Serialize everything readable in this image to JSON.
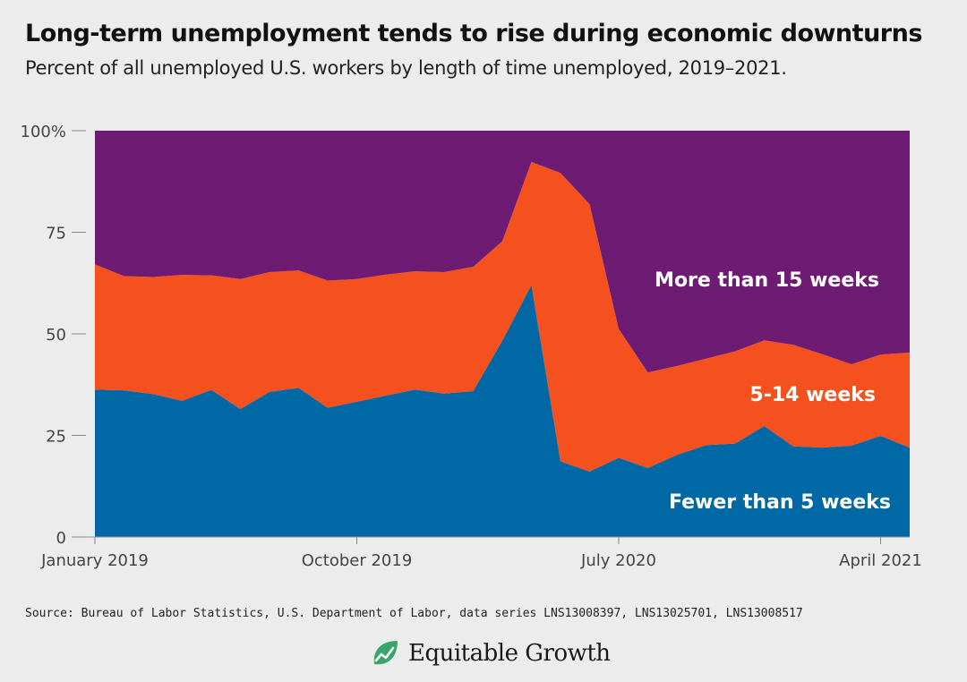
{
  "header": {
    "title": "Long-term unemployment tends to rise during economic downturns",
    "subtitle": "Percent of all unemployed U.S. workers by length of time unemployed, 2019–2021."
  },
  "footer": {
    "source": "Source: Bureau of Labor Statistics, U.S. Department of Labor, data series LNS13008397, LNS13025701, LNS13008517",
    "brand": "Equitable Growth"
  },
  "chart_data": {
    "type": "area",
    "stacked": true,
    "ylim": [
      0,
      100
    ],
    "y_ticks": [
      {
        "value": 0,
        "label": "0"
      },
      {
        "value": 25,
        "label": "25"
      },
      {
        "value": 50,
        "label": "50"
      },
      {
        "value": 75,
        "label": "75"
      },
      {
        "value": 100,
        "label": "100%"
      }
    ],
    "x": [
      "2019-01",
      "2019-02",
      "2019-03",
      "2019-04",
      "2019-05",
      "2019-06",
      "2019-07",
      "2019-08",
      "2019-09",
      "2019-10",
      "2019-11",
      "2019-12",
      "2020-01",
      "2020-02",
      "2020-03",
      "2020-04",
      "2020-05",
      "2020-06",
      "2020-07",
      "2020-08",
      "2020-09",
      "2020-10",
      "2020-11",
      "2020-12",
      "2021-01",
      "2021-02",
      "2021-03",
      "2021-04",
      "2021-05"
    ],
    "x_ticks": [
      {
        "x": "2019-01",
        "label": "January 2019"
      },
      {
        "x": "2019-10",
        "label": "October 2019"
      },
      {
        "x": "2020-07",
        "label": "July 2020"
      },
      {
        "x": "2021-04",
        "label": "April 2021"
      }
    ],
    "series": [
      {
        "name": "Fewer than 5 weeks",
        "color": "#0068a5",
        "values": [
          36.3,
          36.1,
          35.2,
          33.5,
          36.2,
          31.5,
          35.7,
          36.7,
          31.8,
          33.3,
          34.8,
          36.3,
          35.3,
          35.9,
          48.3,
          62.0,
          18.6,
          16.1,
          19.5,
          17.0,
          20.2,
          22.6,
          23.0,
          27.3,
          22.3,
          22.0,
          22.5,
          24.9,
          22.0
        ]
      },
      {
        "name": "5-14 weeks",
        "color": "#f4511e",
        "values": [
          30.8,
          28.1,
          28.8,
          31.0,
          28.2,
          32.0,
          29.5,
          28.9,
          31.3,
          30.2,
          29.8,
          29.1,
          29.9,
          30.6,
          24.5,
          30.3,
          71.0,
          65.8,
          31.7,
          23.5,
          21.9,
          21.3,
          22.7,
          21.1,
          25.0,
          23.0,
          20.0,
          20.0,
          23.4
        ]
      },
      {
        "name": "More than 15 weeks",
        "color": "#6e1b73",
        "values": [
          32.9,
          35.8,
          36.0,
          35.5,
          35.6,
          36.5,
          34.8,
          34.4,
          36.9,
          36.5,
          35.4,
          34.6,
          34.8,
          33.5,
          27.2,
          7.7,
          10.4,
          18.1,
          48.8,
          59.5,
          57.9,
          56.1,
          54.3,
          51.6,
          52.7,
          55.0,
          57.5,
          55.1,
          54.6
        ]
      }
    ]
  }
}
